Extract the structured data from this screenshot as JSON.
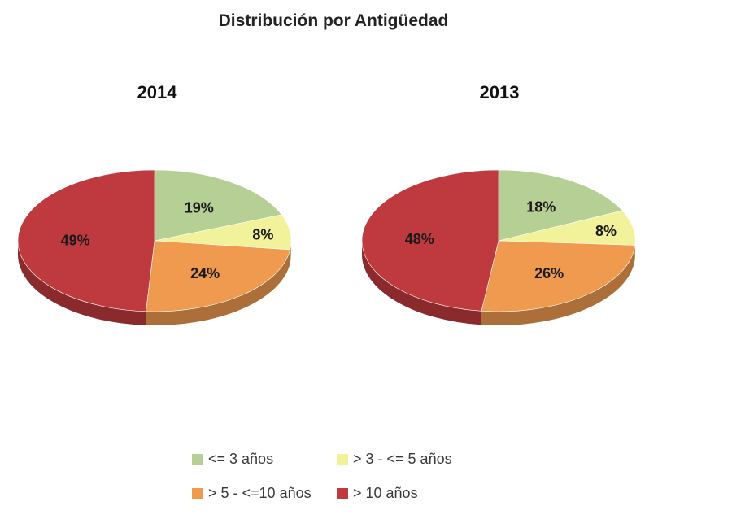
{
  "chart_data": {
    "type": "pie",
    "title": "Distribución por Antigüedad",
    "legend_position": "bottom",
    "categories": [
      "<= 3 años",
      "> 3 - <= 5 años",
      "> 5 - <=10 años",
      "> 10 años"
    ],
    "colors": [
      "#b5cf95",
      "#f1f29a",
      "#ef9a4f",
      "#bf3a3f"
    ],
    "pies": [
      {
        "title": "2014",
        "values": [
          19,
          8,
          24,
          49
        ],
        "labels": [
          "19%",
          "8%",
          "24%",
          "49%"
        ]
      },
      {
        "title": "2013",
        "values": [
          18,
          8,
          26,
          48
        ],
        "labels": [
          "18%",
          "8%",
          "26%",
          "48%"
        ]
      }
    ]
  },
  "legend": {
    "items": [
      {
        "label": "<= 3 años",
        "color": "#b5cf95"
      },
      {
        "label": "> 3 - <= 5 años",
        "color": "#f1f29a"
      },
      {
        "label": "> 5 - <=10 años",
        "color": "#ef9a4f"
      },
      {
        "label": "> 10 años",
        "color": "#bf3a3f"
      }
    ]
  }
}
